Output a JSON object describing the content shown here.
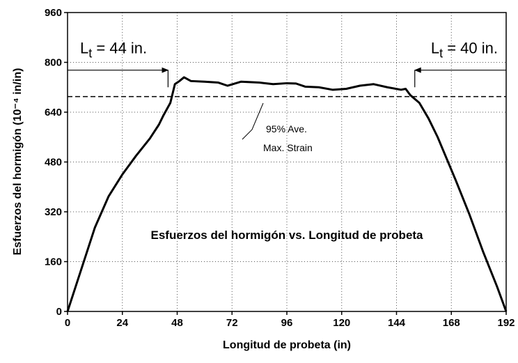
{
  "chart_data": {
    "type": "line",
    "title": "Esfuerzos del hormigón vs. Longitud de probeta",
    "x_label": "Longitud de probeta (in)",
    "y_label": "Esfuerzos del hormigón (10⁻⁴ in/in)",
    "xlim": [
      0,
      192
    ],
    "ylim": [
      0,
      960
    ],
    "xticks": [
      0,
      24,
      48,
      72,
      96,
      120,
      144,
      168,
      192
    ],
    "yticks": [
      0,
      160,
      320,
      480,
      640,
      800,
      960
    ],
    "grid": true,
    "x": [
      0,
      4,
      8,
      12,
      18,
      24,
      30,
      36,
      40,
      42,
      45,
      47,
      49,
      51,
      54,
      60,
      66,
      70,
      76,
      84,
      90,
      96,
      100,
      104,
      110,
      116,
      122,
      128,
      134,
      140,
      146,
      148,
      150,
      154,
      158,
      162,
      166,
      170,
      176,
      182,
      188,
      192
    ],
    "series": [
      {
        "color": "#000000",
        "values": [
          0,
          90,
          180,
          270,
          370,
          440,
          500,
          555,
          600,
          630,
          670,
          730,
          740,
          752,
          740,
          738,
          735,
          725,
          738,
          735,
          730,
          733,
          732,
          722,
          720,
          712,
          715,
          725,
          730,
          720,
          712,
          715,
          695,
          670,
          620,
          560,
          490,
          420,
          310,
          190,
          80,
          0
        ]
      }
    ],
    "reference_line": 690,
    "reference_label": [
      "95% Ave.",
      "Max. Strain"
    ],
    "annotations": [
      {
        "main": "L",
        "sub": "t",
        "rest": " = 44 in.",
        "range": [
          0,
          44
        ],
        "y": 775
      },
      {
        "main": "L",
        "sub": "t",
        "rest": " = 40 in.",
        "range": [
          152,
          192
        ],
        "y": 775
      }
    ]
  }
}
